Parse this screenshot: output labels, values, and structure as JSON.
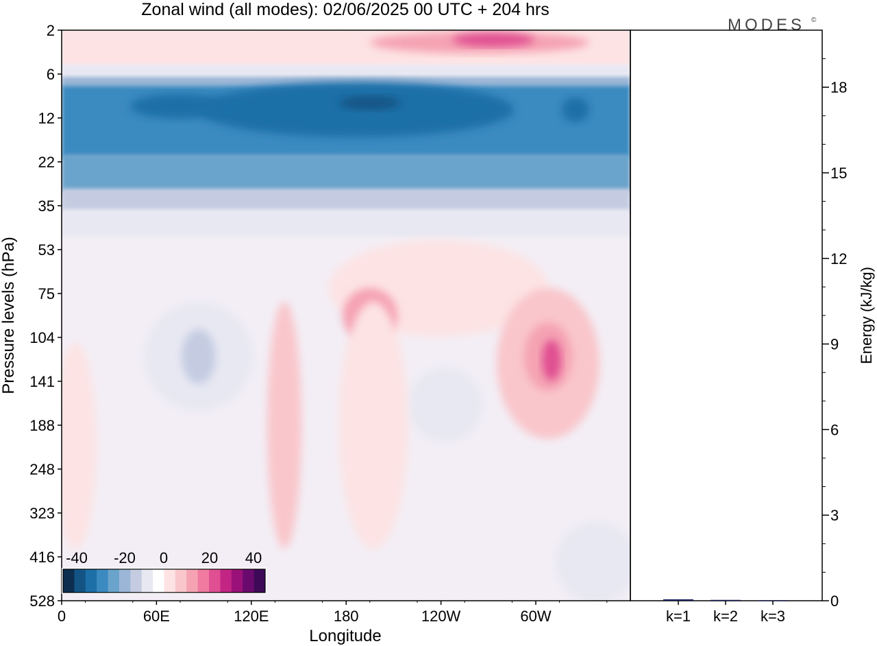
{
  "title": "Zonal wind (all modes):  02/06/2025  00 UTC  + 204 hrs",
  "brand": "MODES",
  "brand_mark": "©",
  "chart_data": [
    {
      "type": "heatmap",
      "xlabel": "Longitude",
      "ylabel": "Pressure levels (hPa)",
      "x_ticks": [
        "0",
        "60E",
        "120E",
        "180",
        "120W",
        "60W"
      ],
      "y_ticks": [
        "2",
        "6",
        "12",
        "22",
        "35",
        "53",
        "75",
        "104",
        "141",
        "188",
        "248",
        "323",
        "416",
        "528"
      ],
      "colorbar": {
        "labels": [
          "-40",
          "-20",
          "0",
          "20",
          "40"
        ],
        "levels": [
          -40,
          -35,
          -30,
          -25,
          -20,
          -15,
          -10,
          -5,
          0,
          5,
          10,
          15,
          20,
          25,
          30,
          35,
          40
        ],
        "colors": [
          "#0d2e4f",
          "#135485",
          "#1d6fa8",
          "#3b8ac0",
          "#6aa3cb",
          "#9bb6d6",
          "#c5cce2",
          "#e8e8f2",
          "#ffffff",
          "#fde3e3",
          "#f9c6cb",
          "#f5a3b3",
          "#f07aa0",
          "#e04f92",
          "#c22584",
          "#9a1279",
          "#6b0a6e",
          "#3e0a57"
        ]
      },
      "bands": [
        {
          "level_top": 2,
          "level_bottom": 6,
          "description_value": 8
        },
        {
          "level_top": 6,
          "level_bottom": 22,
          "description_value": -30
        },
        {
          "level_top": 22,
          "level_bottom": 35,
          "description_value": -20
        },
        {
          "level_top": 35,
          "level_bottom": 53,
          "description_value": -5
        },
        {
          "level_top": 53,
          "level_bottom": 528,
          "description_value": 0
        }
      ]
    },
    {
      "type": "bar",
      "ylabel": "Energy (kJ/kg)",
      "categories": [
        "k=1",
        "k=2",
        "k=3"
      ],
      "values": [
        0.05,
        0.03,
        0.02
      ],
      "y_ticks": [
        "0",
        "3",
        "6",
        "9",
        "12",
        "15",
        "18"
      ],
      "ylim": [
        0,
        20
      ]
    }
  ]
}
